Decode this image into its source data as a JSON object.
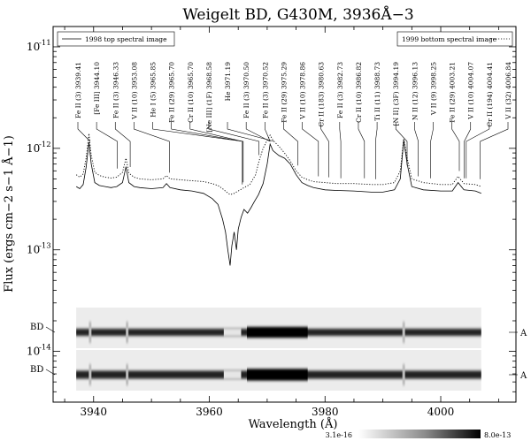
{
  "chart_data": {
    "type": "line",
    "title": "Weigelt BD, G430M, 3936Å−3",
    "xlabel": "Wavelength (Å)",
    "ylabel": "Flux (ergs cm−2 s−1 Å−1)",
    "xlim": [
      3933,
      4013
    ],
    "ylim_log10": [
      -14.5,
      -10.8
    ],
    "y_scale": "log",
    "x_ticks": [
      3940,
      3960,
      3980,
      4000
    ],
    "y_ticks": [
      {
        "exp": "-11",
        "value": 1e-11
      },
      {
        "exp": "-12",
        "value": 1e-12
      },
      {
        "exp": "-13",
        "value": 1e-13
      },
      {
        "exp": "-14",
        "value": 1e-14
      }
    ],
    "y_tick_base": "10",
    "legend": {
      "top_left": "1998 top spectral image",
      "top_right": "1999 bottom spectral image"
    },
    "series": [
      {
        "name": "1998 top spectral image",
        "style": "solid",
        "points": [
          [
            3937.0,
            4.2e-13
          ],
          [
            3937.6,
            4e-13
          ],
          [
            3938.2,
            4.4e-13
          ],
          [
            3938.7,
            6.5e-13
          ],
          [
            3939.2,
            1.15e-12
          ],
          [
            3939.6,
            7e-13
          ],
          [
            3940.2,
            4.6e-13
          ],
          [
            3941.0,
            4.3e-13
          ],
          [
            3942.0,
            4.2e-13
          ],
          [
            3943.0,
            4.1e-13
          ],
          [
            3944.0,
            4.2e-13
          ],
          [
            3945.0,
            4.6e-13
          ],
          [
            3945.6,
            6.6e-13
          ],
          [
            3946.1,
            4.6e-13
          ],
          [
            3947.0,
            4.2e-13
          ],
          [
            3948.0,
            4.1e-13
          ],
          [
            3950.0,
            4e-13
          ],
          [
            3952.0,
            4.1e-13
          ],
          [
            3952.6,
            4.5e-13
          ],
          [
            3953.2,
            4.1e-13
          ],
          [
            3955.0,
            3.9e-13
          ],
          [
            3957.0,
            3.8e-13
          ],
          [
            3959.0,
            3.6e-13
          ],
          [
            3960.5,
            3.2e-13
          ],
          [
            3961.5,
            2.8e-13
          ],
          [
            3962.3,
            2e-13
          ],
          [
            3962.8,
            1.5e-13
          ],
          [
            3963.2,
            1e-13
          ],
          [
            3963.6,
            7e-14
          ],
          [
            3963.9,
            1.1e-13
          ],
          [
            3964.3,
            1.5e-13
          ],
          [
            3964.7,
            1e-13
          ],
          [
            3965.0,
            1.6e-13
          ],
          [
            3965.5,
            2.1e-13
          ],
          [
            3966.0,
            2.5e-13
          ],
          [
            3966.6,
            2.3e-13
          ],
          [
            3967.2,
            2.6e-13
          ],
          [
            3967.8,
            3e-13
          ],
          [
            3968.5,
            3.5e-13
          ],
          [
            3969.3,
            4.5e-13
          ],
          [
            3970.0,
            7e-13
          ],
          [
            3970.5,
            1.1e-12
          ],
          [
            3971.0,
            9.5e-13
          ],
          [
            3972.0,
            8.5e-13
          ],
          [
            3973.0,
            8e-13
          ],
          [
            3974.0,
            7e-13
          ],
          [
            3975.0,
            5.5e-13
          ],
          [
            3976.0,
            4.6e-13
          ],
          [
            3977.0,
            4.3e-13
          ],
          [
            3978.0,
            4.1e-13
          ],
          [
            3980.0,
            3.9e-13
          ],
          [
            3982.0,
            3.85e-13
          ],
          [
            3985.0,
            3.8e-13
          ],
          [
            3988.0,
            3.7e-13
          ],
          [
            3990.0,
            3.7e-13
          ],
          [
            3992.0,
            3.9e-13
          ],
          [
            3993.0,
            5e-13
          ],
          [
            3993.6,
            1.2e-12
          ],
          [
            3994.2,
            7e-13
          ],
          [
            3995.0,
            4.2e-13
          ],
          [
            3997.0,
            3.9e-13
          ],
          [
            4000.0,
            3.8e-13
          ],
          [
            4002.0,
            3.8e-13
          ],
          [
            4003.0,
            4.6e-13
          ],
          [
            4004.0,
            3.9e-13
          ],
          [
            4006.0,
            3.8e-13
          ],
          [
            4007.0,
            3.6e-13
          ]
        ]
      },
      {
        "name": "1999 bottom spectral image",
        "style": "dotted",
        "points": [
          [
            3937.0,
            5.5e-13
          ],
          [
            3937.6,
            5.2e-13
          ],
          [
            3938.2,
            5.6e-13
          ],
          [
            3938.7,
            8e-13
          ],
          [
            3939.2,
            1.4e-12
          ],
          [
            3939.6,
            8.5e-13
          ],
          [
            3940.2,
            5.8e-13
          ],
          [
            3941.0,
            5.4e-13
          ],
          [
            3942.0,
            5.2e-13
          ],
          [
            3943.0,
            5.1e-13
          ],
          [
            3944.0,
            5.2e-13
          ],
          [
            3945.0,
            5.8e-13
          ],
          [
            3945.6,
            8e-13
          ],
          [
            3946.1,
            5.7e-13
          ],
          [
            3947.0,
            5.2e-13
          ],
          [
            3948.0,
            5e-13
          ],
          [
            3950.0,
            4.9e-13
          ],
          [
            3952.0,
            5e-13
          ],
          [
            3952.6,
            5.4e-13
          ],
          [
            3953.2,
            5e-13
          ],
          [
            3955.0,
            4.9e-13
          ],
          [
            3957.0,
            4.8e-13
          ],
          [
            3959.0,
            4.7e-13
          ],
          [
            3960.5,
            4.5e-13
          ],
          [
            3961.5,
            4.3e-13
          ],
          [
            3962.3,
            4e-13
          ],
          [
            3963.0,
            3.7e-13
          ],
          [
            3963.6,
            3.5e-13
          ],
          [
            3964.3,
            3.6e-13
          ],
          [
            3965.0,
            3.8e-13
          ],
          [
            3966.0,
            4.1e-13
          ],
          [
            3967.0,
            4.4e-13
          ],
          [
            3968.0,
            5.5e-13
          ],
          [
            3968.6,
            7.5e-13
          ],
          [
            3969.3,
            1e-12
          ],
          [
            3970.0,
            1.2e-12
          ],
          [
            3970.5,
            1.35e-12
          ],
          [
            3971.0,
            1.2e-12
          ],
          [
            3972.0,
            1.05e-12
          ],
          [
            3973.0,
            9e-13
          ],
          [
            3974.0,
            7.5e-13
          ],
          [
            3975.0,
            6e-13
          ],
          [
            3976.0,
            5.2e-13
          ],
          [
            3977.0,
            4.9e-13
          ],
          [
            3978.0,
            4.7e-13
          ],
          [
            3980.0,
            4.6e-13
          ],
          [
            3982.0,
            4.5e-13
          ],
          [
            3985.0,
            4.5e-13
          ],
          [
            3988.0,
            4.4e-13
          ],
          [
            3990.0,
            4.4e-13
          ],
          [
            3992.0,
            4.6e-13
          ],
          [
            3993.0,
            6e-13
          ],
          [
            3993.6,
            1.25e-12
          ],
          [
            3994.2,
            8e-13
          ],
          [
            3995.0,
            5e-13
          ],
          [
            3997.0,
            4.6e-13
          ],
          [
            4000.0,
            4.4e-13
          ],
          [
            4002.0,
            4.4e-13
          ],
          [
            4003.0,
            5.3e-13
          ],
          [
            4004.0,
            4.5e-13
          ],
          [
            4006.0,
            4.4e-13
          ],
          [
            4007.0,
            4.2e-13
          ]
        ]
      }
    ],
    "line_ids": [
      {
        "label": "Fe II  (3) 3939.41",
        "wl": 3939.41,
        "mark_y": 1.4e-12
      },
      {
        "label": "[Fe III]  3944.10",
        "wl": 3944.1,
        "mark_y": 5.6e-13
      },
      {
        "label": "Fe II  (3) 3946.33",
        "wl": 3946.33,
        "mark_y": 5.8e-13
      },
      {
        "label": "V II  (10) 3953.08",
        "wl": 3953.08,
        "mark_y": 5.1e-13
      },
      {
        "label": "He I  (5) 3965.85",
        "wl": 3965.85,
        "mark_y": 4.1e-13
      },
      {
        "label": "Fe II  (29) 3965.70",
        "wl": 3965.7,
        "mark_y": 4e-13
      },
      {
        "label": "Cr II  (10) 3965.70",
        "wl": 3965.7,
        "mark_y": 3.9e-13
      },
      {
        "label": "[Ne III]  (1F) 3968.58",
        "wl": 3968.58,
        "mark_y": 7.6e-13
      },
      {
        "label": "He  3971.19",
        "wl": 3971.19,
        "mark_y": 1.15e-12
      },
      {
        "label": "Fe II  (3) 3970.50",
        "wl": 3970.5,
        "mark_y": 1.3e-12
      },
      {
        "label": "Fe II  (3) 3970.52",
        "wl": 3970.52,
        "mark_y": 1.3e-12
      },
      {
        "label": "Fe II  (29) 3975.29",
        "wl": 3975.29,
        "mark_y": 6e-13
      },
      {
        "label": "V II  (10) 3978.86",
        "wl": 3978.86,
        "mark_y": 4.7e-13
      },
      {
        "label": "Cr II  (183) 3980.63",
        "wl": 3980.63,
        "mark_y": 4.6e-13
      },
      {
        "label": "Fe II  (3) 3982.73",
        "wl": 3982.73,
        "mark_y": 4.5e-13
      },
      {
        "label": "Cr II  (10) 3986.82",
        "wl": 3986.82,
        "mark_y": 4.5e-13
      },
      {
        "label": "Ti II  (11) 3988.73",
        "wl": 3988.73,
        "mark_y": 4.4e-13
      },
      {
        "label": "[N II]  (3F) 3994.19",
        "wl": 3994.19,
        "mark_y": 6e-13
      },
      {
        "label": "N II  (12) 3996.13",
        "wl": 3996.13,
        "mark_y": 4.7e-13
      },
      {
        "label": "V II  (9) 3998.25",
        "wl": 3998.25,
        "mark_y": 4.5e-13
      },
      {
        "label": "Fe II  (29) 4003.21",
        "wl": 4003.21,
        "mark_y": 5.3e-13
      },
      {
        "label": "V II  (10) 4004.07",
        "wl": 4004.07,
        "mark_y": 4.5e-13
      },
      {
        "label": "Cr II  (194) 4004.41",
        "wl": 4004.41,
        "mark_y": 4.5e-13
      },
      {
        "label": "V II  (32) 4006.84",
        "wl": 4006.84,
        "mark_y": 4.4e-13
      }
    ],
    "spectral_images": [
      {
        "left_label": "BD",
        "right_label": "A"
      },
      {
        "left_label": "BD",
        "right_label": "A"
      }
    ],
    "colorbar": {
      "min_label": "3.1e-16",
      "max_label": "8.0e-13"
    }
  }
}
